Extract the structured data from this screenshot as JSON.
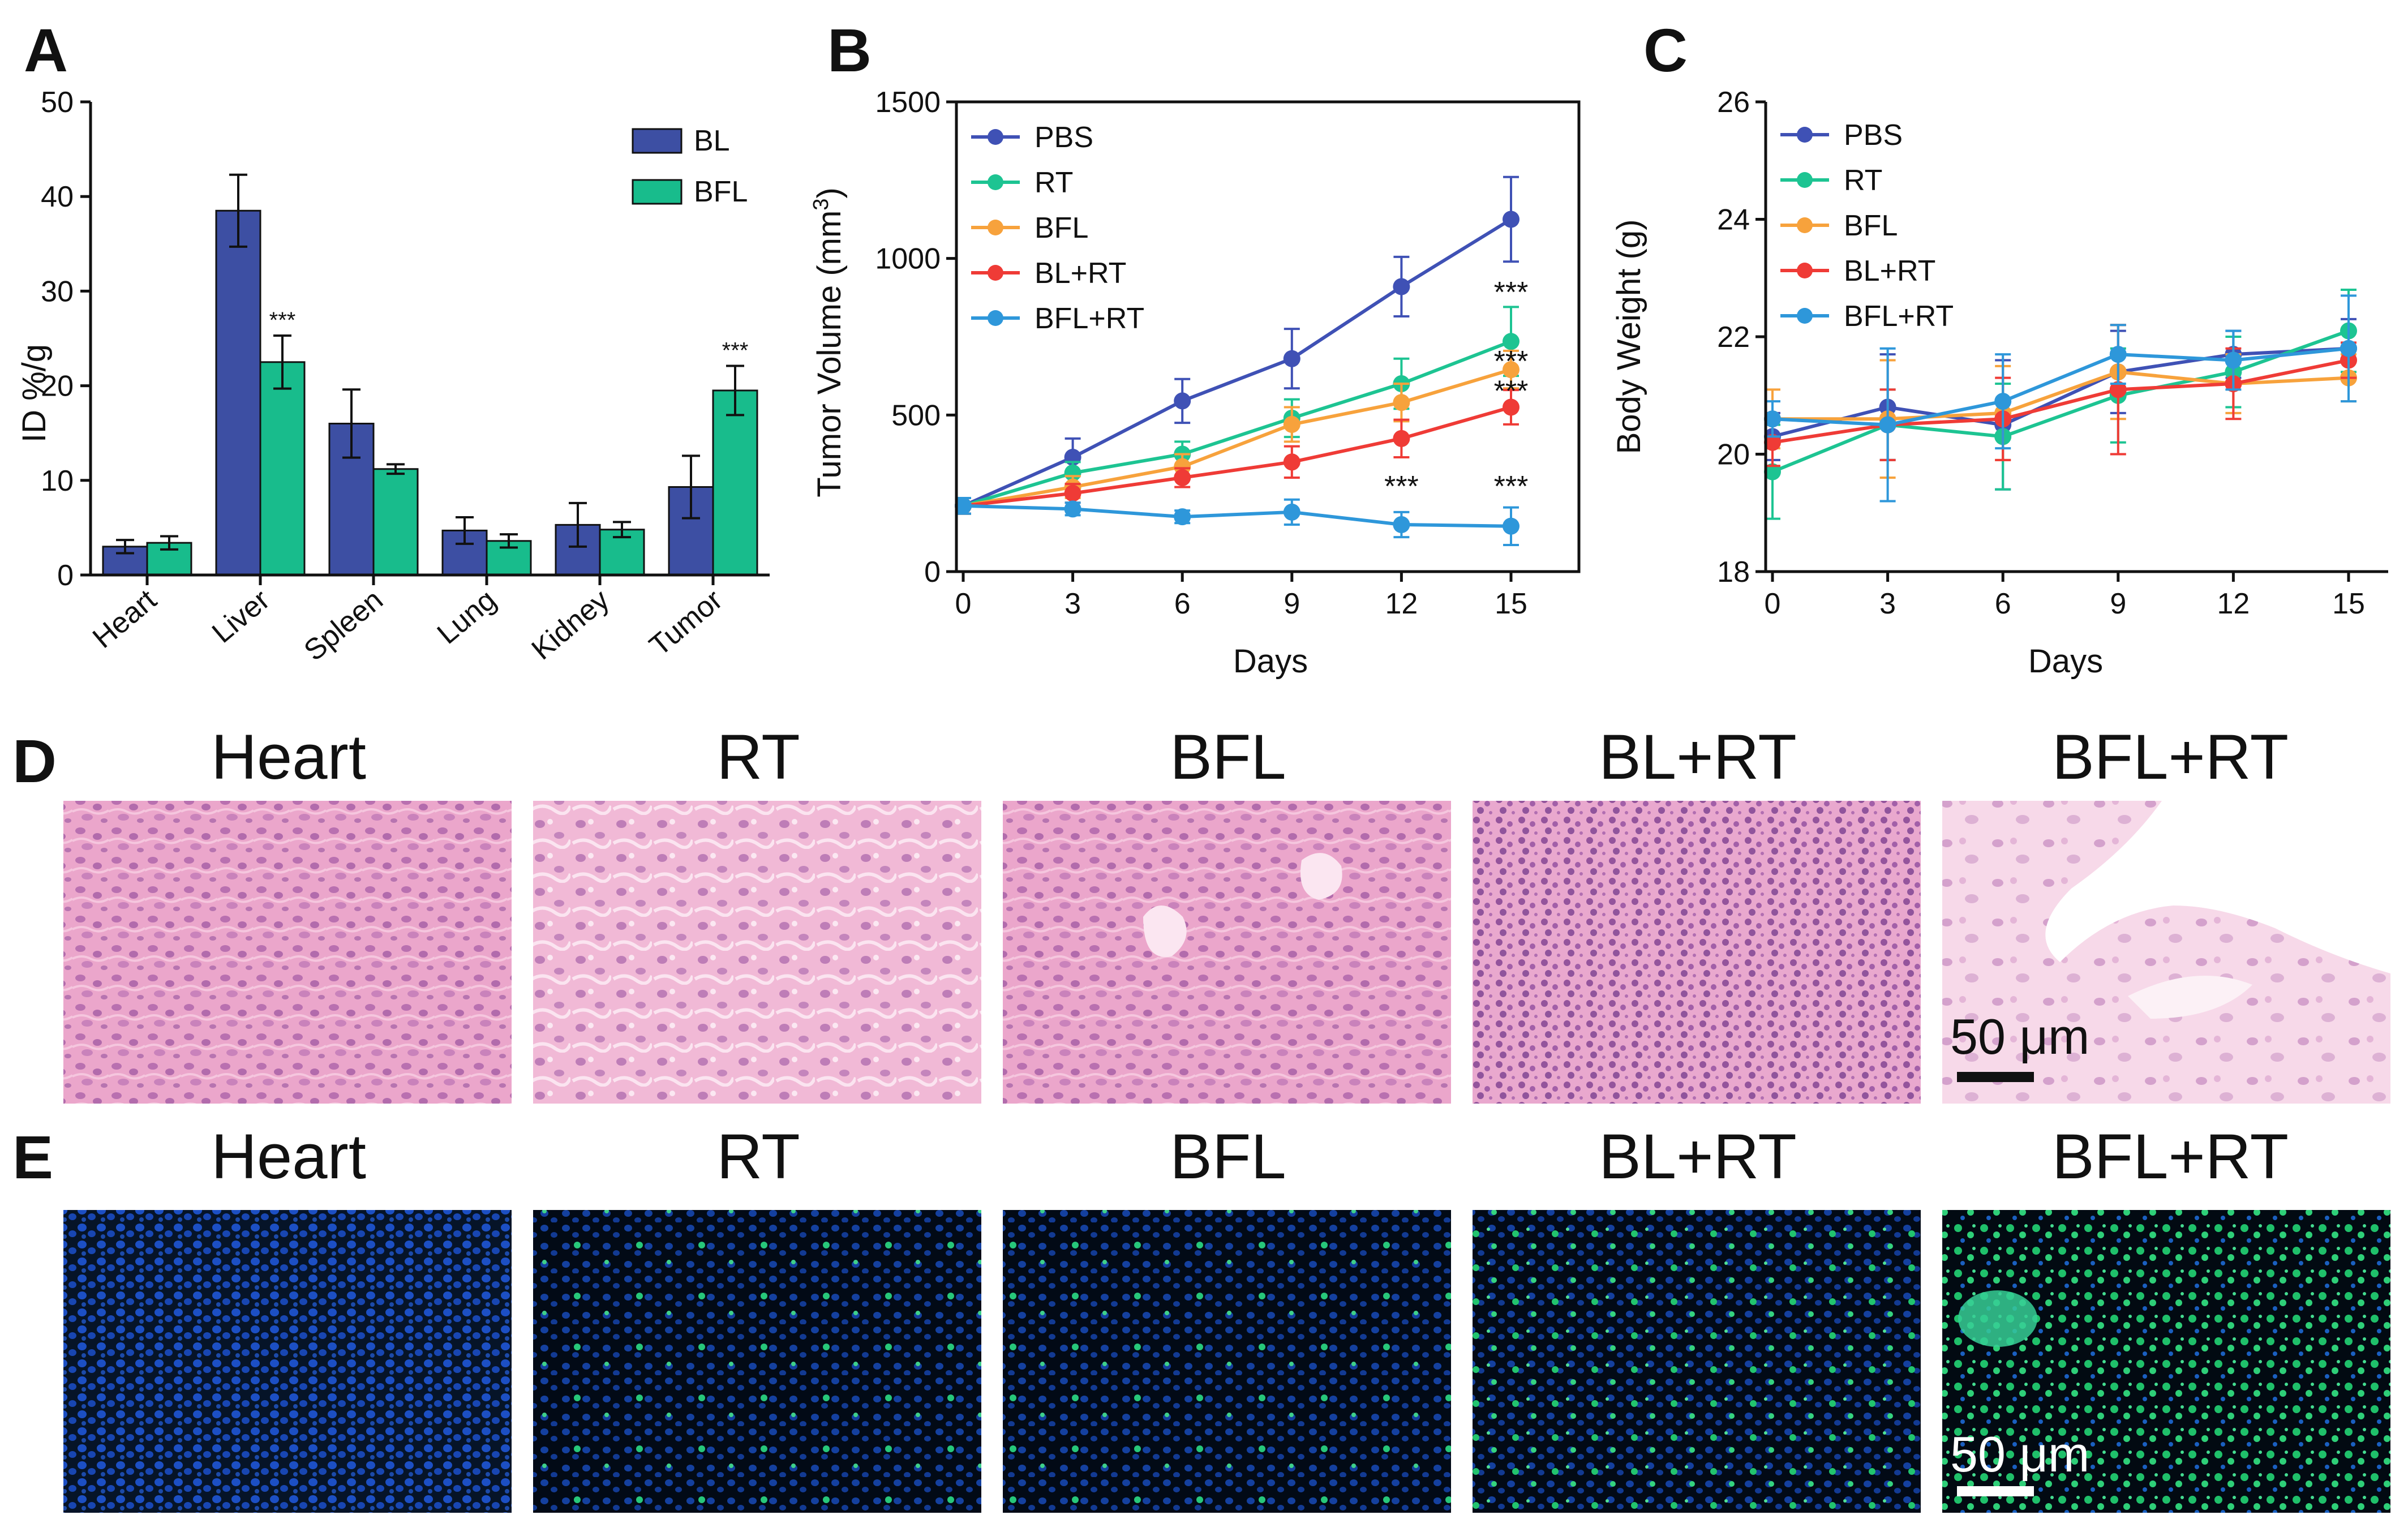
{
  "panel_letters": [
    "A",
    "B",
    "C",
    "D",
    "E"
  ],
  "colors": {
    "BL": "#3D4FA3",
    "BFL": "#18BC8C",
    "PBS": "#3F51B5",
    "RT": "#1DC492",
    "BFL_line": "#F7A23C",
    "BL+RT": "#EF3B36",
    "BFL+RT": "#2E97DA"
  },
  "chart_data": [
    {
      "id": "A",
      "type": "bar",
      "title": "",
      "xlabel": "",
      "ylabel": "ID %/g",
      "ylim": [
        0,
        50
      ],
      "yticks": [
        "0",
        "10",
        "20",
        "30",
        "40",
        "50"
      ],
      "categories": [
        "Heart",
        "Liver",
        "Spleen",
        "Lung",
        "Kidney",
        "Tumor"
      ],
      "series": [
        {
          "name": "BL",
          "values": [
            3.0,
            38.5,
            16.0,
            4.7,
            5.3,
            9.3
          ],
          "errors": [
            0.7,
            3.8,
            3.6,
            1.4,
            2.3,
            3.3
          ]
        },
        {
          "name": "BFL",
          "values": [
            3.4,
            22.5,
            11.2,
            3.6,
            4.8,
            19.5
          ],
          "errors": [
            0.7,
            2.8,
            0.5,
            0.7,
            0.8,
            2.6
          ]
        }
      ],
      "annotations": [
        {
          "category": "Liver",
          "series": "BFL",
          "text": "***"
        },
        {
          "category": "Tumor",
          "series": "BFL",
          "text": "***"
        }
      ],
      "legend": "top-right"
    },
    {
      "id": "B",
      "type": "line",
      "title": "",
      "xlabel": "Days",
      "ylabel": "Tumor Volume (mm",
      "ylabel_sup": "3",
      "ylabel_end": ")",
      "ylim": [
        0,
        1500
      ],
      "xlim": [
        0,
        15
      ],
      "x": [
        0,
        3,
        6,
        9,
        12,
        15
      ],
      "xticks": [
        "0",
        "3",
        "6",
        "9",
        "12",
        "15"
      ],
      "yticks": [
        "0",
        "500",
        "1000",
        "1500"
      ],
      "series": [
        {
          "name": "PBS",
          "values": [
            210,
            365,
            545,
            680,
            910,
            1125
          ],
          "errors": [
            25,
            60,
            70,
            95,
            95,
            135
          ]
        },
        {
          "name": "RT",
          "values": [
            210,
            315,
            375,
            490,
            600,
            735
          ],
          "errors": [
            25,
            35,
            40,
            60,
            80,
            110
          ]
        },
        {
          "name": "BFL",
          "values": [
            210,
            270,
            335,
            470,
            540,
            645
          ],
          "errors": [
            25,
            35,
            40,
            55,
            60,
            60
          ]
        },
        {
          "name": "BL+RT",
          "values": [
            210,
            250,
            300,
            350,
            425,
            525
          ],
          "errors": [
            25,
            30,
            30,
            50,
            60,
            55
          ]
        },
        {
          "name": "BFL+RT",
          "values": [
            210,
            200,
            175,
            190,
            150,
            145
          ],
          "errors": [
            25,
            20,
            20,
            40,
            40,
            60
          ]
        }
      ],
      "annotations": [
        {
          "x": 15,
          "y": 860,
          "text": "***"
        },
        {
          "x": 15,
          "y": 640,
          "text": "***"
        },
        {
          "x": 15,
          "y": 545,
          "text": "***"
        },
        {
          "x": 12,
          "y": 240,
          "text": "***"
        },
        {
          "x": 15,
          "y": 240,
          "text": "***"
        }
      ],
      "legend": "top-left"
    },
    {
      "id": "C",
      "type": "line",
      "title": "",
      "xlabel": "Days",
      "ylabel": "Body Weight (g)",
      "ylim": [
        18,
        26
      ],
      "xlim": [
        0,
        15
      ],
      "x": [
        0,
        3,
        6,
        9,
        12,
        15
      ],
      "xticks": [
        "0",
        "3",
        "6",
        "9",
        "12",
        "15"
      ],
      "yticks": [
        "18",
        "20",
        "22",
        "24",
        "26"
      ],
      "series": [
        {
          "name": "PBS",
          "values": [
            20.3,
            20.8,
            20.5,
            21.4,
            21.7,
            21.8
          ],
          "errors": [
            0.4,
            0.9,
            1.1,
            0.7,
            0.4,
            0.5
          ]
        },
        {
          "name": "RT",
          "values": [
            19.7,
            20.5,
            20.3,
            21.0,
            21.4,
            22.1
          ],
          "errors": [
            0.8,
            0.6,
            0.9,
            0.8,
            0.6,
            0.7
          ]
        },
        {
          "name": "BFL",
          "values": [
            20.6,
            20.6,
            20.7,
            21.4,
            21.2,
            21.3
          ],
          "errors": [
            0.5,
            1.0,
            0.8,
            0.8,
            0.5,
            0.4
          ]
        },
        {
          "name": "BL+RT",
          "values": [
            20.2,
            20.5,
            20.6,
            21.1,
            21.2,
            21.6
          ],
          "errors": [
            0.4,
            0.6,
            0.7,
            1.1,
            0.6,
            0.3
          ]
        },
        {
          "name": "BFL+RT",
          "values": [
            20.6,
            20.5,
            20.9,
            21.7,
            21.6,
            21.8
          ],
          "errors": [
            0.3,
            1.3,
            0.8,
            0.5,
            0.5,
            0.9
          ]
        }
      ],
      "legend": "top-left"
    }
  ],
  "microscopy": {
    "D": {
      "titles": [
        "Heart",
        "RT",
        "BFL",
        "BL+RT",
        "BFL+RT"
      ],
      "scale_bar": "50 μm",
      "stain": "H&E"
    },
    "E": {
      "titles": [
        "Heart",
        "RT",
        "BFL",
        "BL+RT",
        "BFL+RT"
      ],
      "scale_bar": "50 μm",
      "stain": "fluorescence"
    }
  }
}
